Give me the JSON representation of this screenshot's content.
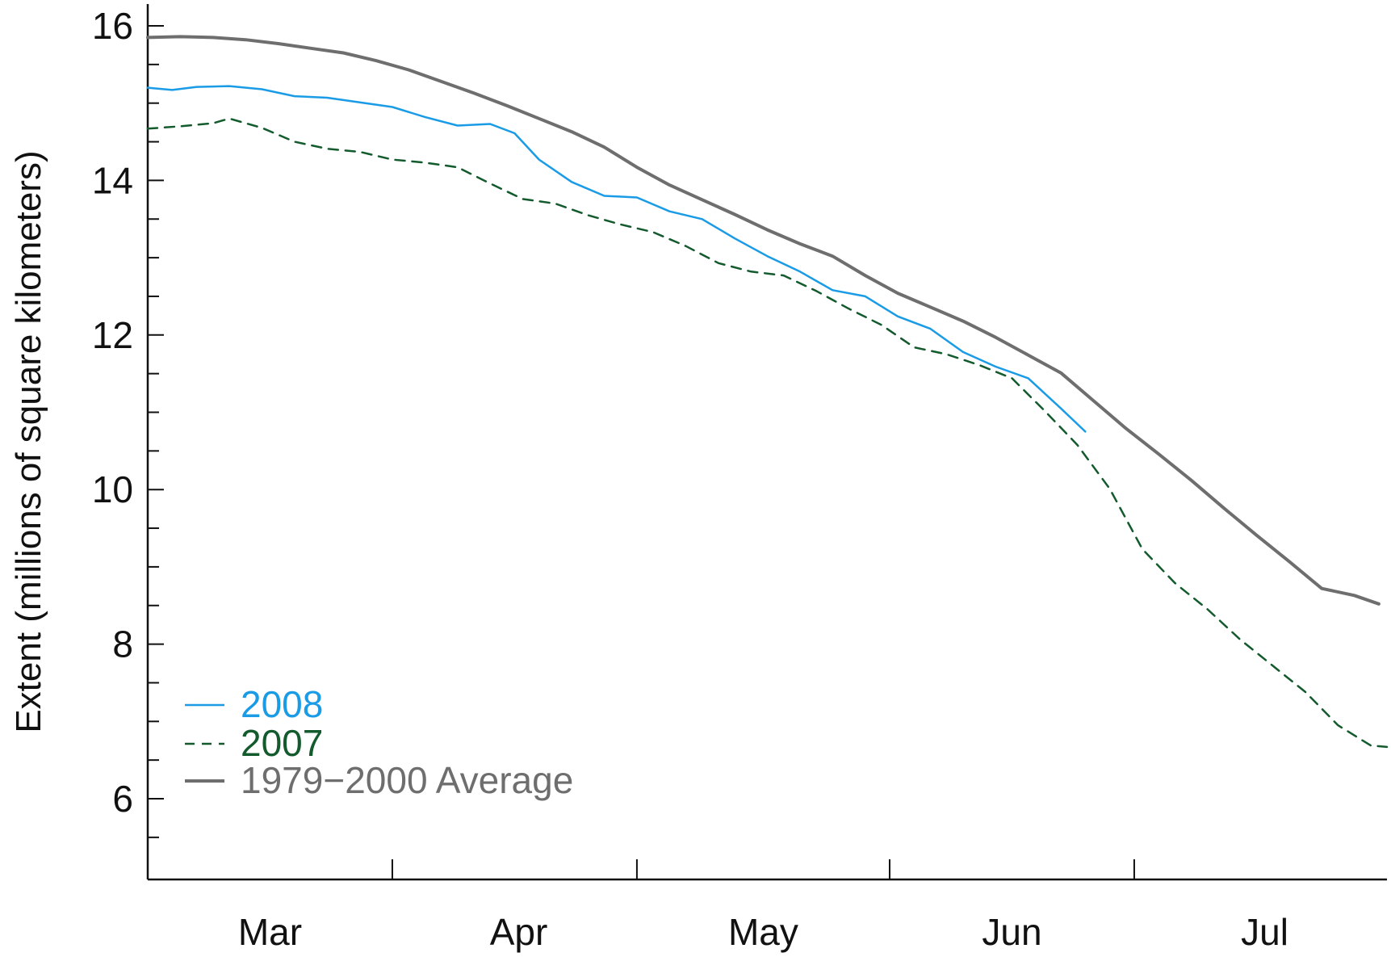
{
  "chart_data": {
    "type": "line",
    "title": "",
    "xlabel": "",
    "ylabel": "Extent (millions of square kilometers)",
    "ylim": [
      5,
      16.2
    ],
    "y_ticks": [
      6,
      8,
      10,
      12,
      14,
      16
    ],
    "x_axis": {
      "unit": "day",
      "range_days": [
        0,
        152
      ],
      "month_boundaries": [
        30,
        60,
        91,
        121
      ],
      "month_labels": [
        {
          "label": "Mar",
          "day": 15
        },
        {
          "label": "Apr",
          "day": 45.5
        },
        {
          "label": "May",
          "day": 75.5
        },
        {
          "label": "Jun",
          "day": 106
        },
        {
          "label": "Jul",
          "day": 137
        }
      ]
    },
    "legend_position": "bottom-left",
    "grid": false,
    "series": [
      {
        "name": "2008",
        "color": "#1a9be6",
        "dash": "solid",
        "x": [
          0,
          3,
          6,
          10,
          14,
          18,
          22,
          26,
          30,
          34,
          38,
          42,
          45,
          48,
          52,
          56,
          60,
          64,
          68,
          72,
          76,
          80,
          84,
          88,
          92,
          96,
          100,
          104,
          108,
          112,
          115
        ],
        "y": [
          15.2,
          15.17,
          15.21,
          15.22,
          15.18,
          15.09,
          15.07,
          15.01,
          14.95,
          14.82,
          14.71,
          14.73,
          14.61,
          14.27,
          13.98,
          13.8,
          13.78,
          13.6,
          13.5,
          13.25,
          13.02,
          12.82,
          12.58,
          12.5,
          12.24,
          12.08,
          11.78,
          11.59,
          11.44,
          11.05,
          10.75
        ]
      },
      {
        "name": "2007",
        "color": "#135a2d",
        "dash": "dashed",
        "x": [
          0,
          4,
          8,
          10,
          14,
          18,
          22,
          26,
          30,
          34,
          38,
          42,
          46,
          50,
          54,
          58,
          62,
          66,
          70,
          74,
          78,
          82,
          86,
          90,
          94,
          98,
          102,
          106,
          110,
          114,
          118,
          122,
          126,
          130,
          134,
          138,
          142,
          146,
          150,
          152
        ],
        "y": [
          14.67,
          14.7,
          14.74,
          14.8,
          14.68,
          14.5,
          14.41,
          14.37,
          14.27,
          14.23,
          14.17,
          13.96,
          13.76,
          13.7,
          13.55,
          13.43,
          13.33,
          13.15,
          12.93,
          12.82,
          12.77,
          12.57,
          12.34,
          12.13,
          11.84,
          11.75,
          11.61,
          11.44,
          11.02,
          10.58,
          10.01,
          9.23,
          8.79,
          8.45,
          8.06,
          7.72,
          7.38,
          6.95,
          6.69,
          6.67
        ]
      },
      {
        "name": "1979−2000 Average",
        "color": "#6e6e6e",
        "dash": "solid",
        "x": [
          0,
          4,
          8,
          12,
          16,
          20,
          24,
          28,
          32,
          36,
          40,
          44,
          48,
          52,
          56,
          60,
          64,
          68,
          72,
          76,
          80,
          84,
          88,
          92,
          96,
          100,
          104,
          108,
          112,
          116,
          120,
          124,
          128,
          132,
          136,
          140,
          144,
          148,
          151
        ],
        "y": [
          15.85,
          15.86,
          15.85,
          15.82,
          15.77,
          15.71,
          15.65,
          15.55,
          15.43,
          15.28,
          15.13,
          14.97,
          14.8,
          14.63,
          14.43,
          14.17,
          13.94,
          13.75,
          13.56,
          13.36,
          13.18,
          13.02,
          12.77,
          12.54,
          12.36,
          12.18,
          11.97,
          11.74,
          11.51,
          11.15,
          10.79,
          10.46,
          10.12,
          9.76,
          9.41,
          9.07,
          8.72,
          8.63,
          8.52
        ]
      }
    ]
  }
}
